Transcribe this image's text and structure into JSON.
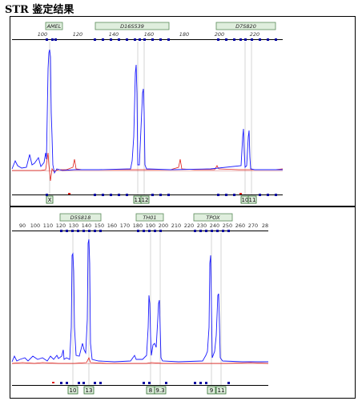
{
  "title": "STR 鉴定结果",
  "panels": [
    {
      "id": "top",
      "axis_labels": [
        "100",
        "120",
        "140",
        "160",
        "180",
        "200",
        "220"
      ],
      "loci": [
        {
          "name": "AMEL"
        },
        {
          "name": "D16S539"
        },
        {
          "name": "D7S820"
        }
      ],
      "alleles": [
        "X",
        "11",
        "12",
        "10",
        "11"
      ]
    },
    {
      "id": "bottom",
      "axis_labels": [
        "90",
        "100",
        "110",
        "120",
        "130",
        "140",
        "150",
        "160",
        "170",
        "180",
        "190",
        "200",
        "210",
        "220",
        "230",
        "240",
        "250",
        "260",
        "270",
        "28"
      ],
      "loci": [
        {
          "name": "D5S818"
        },
        {
          "name": "TH01"
        },
        {
          "name": "TPOX"
        }
      ],
      "alleles": [
        "10",
        "13",
        "8",
        "9.3",
        "9",
        "11"
      ]
    }
  ],
  "colors": {
    "trace_blue": "#1a1aff",
    "trace_red": "#e0201a",
    "marker_blue": "#0000a0",
    "locus_bg": "#dfeedd",
    "locus_border": "#5a8a5a",
    "allele_border": "#2a6a2a",
    "guide_line": "#b8b8b8"
  }
}
